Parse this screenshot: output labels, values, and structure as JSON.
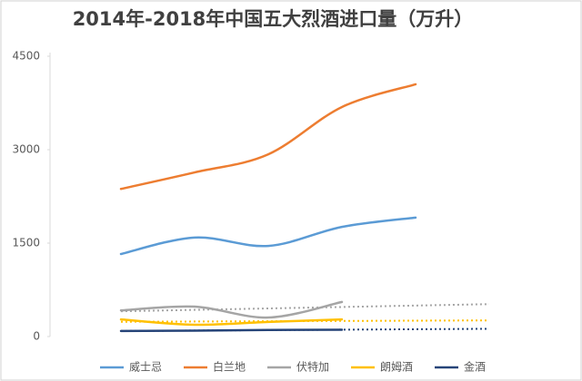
{
  "chart_data": {
    "type": "line",
    "title": "2014年-2018年中国五大烈酒进口量（万升）",
    "categories": [
      null,
      null,
      null,
      null,
      null
    ],
    "ylim": [
      0,
      4500
    ],
    "yticks": [
      0,
      1500,
      3000,
      4500
    ],
    "grid": false,
    "smooth": true,
    "legend": "bottom",
    "series": [
      {
        "name": "威士忌",
        "color": "#5b9bd5",
        "values": [
          1325,
          1590,
          1455,
          1760,
          1910
        ]
      },
      {
        "name": "白兰地",
        "color": "#ed7d31",
        "values": [
          2370,
          2635,
          2925,
          3685,
          4050
        ]
      },
      {
        "name": "伏特加",
        "color": "#a5a5a5",
        "values": [
          420,
          480,
          305,
          555,
          null
        ],
        "trendline": true
      },
      {
        "name": "朗姆酒",
        "color": "#ffc000",
        "values": [
          275,
          190,
          235,
          275,
          null
        ],
        "trendline": true
      },
      {
        "name": "金酒",
        "color": "#264478",
        "values": [
          90,
          95,
          105,
          110,
          null
        ],
        "trendline": true
      }
    ]
  }
}
